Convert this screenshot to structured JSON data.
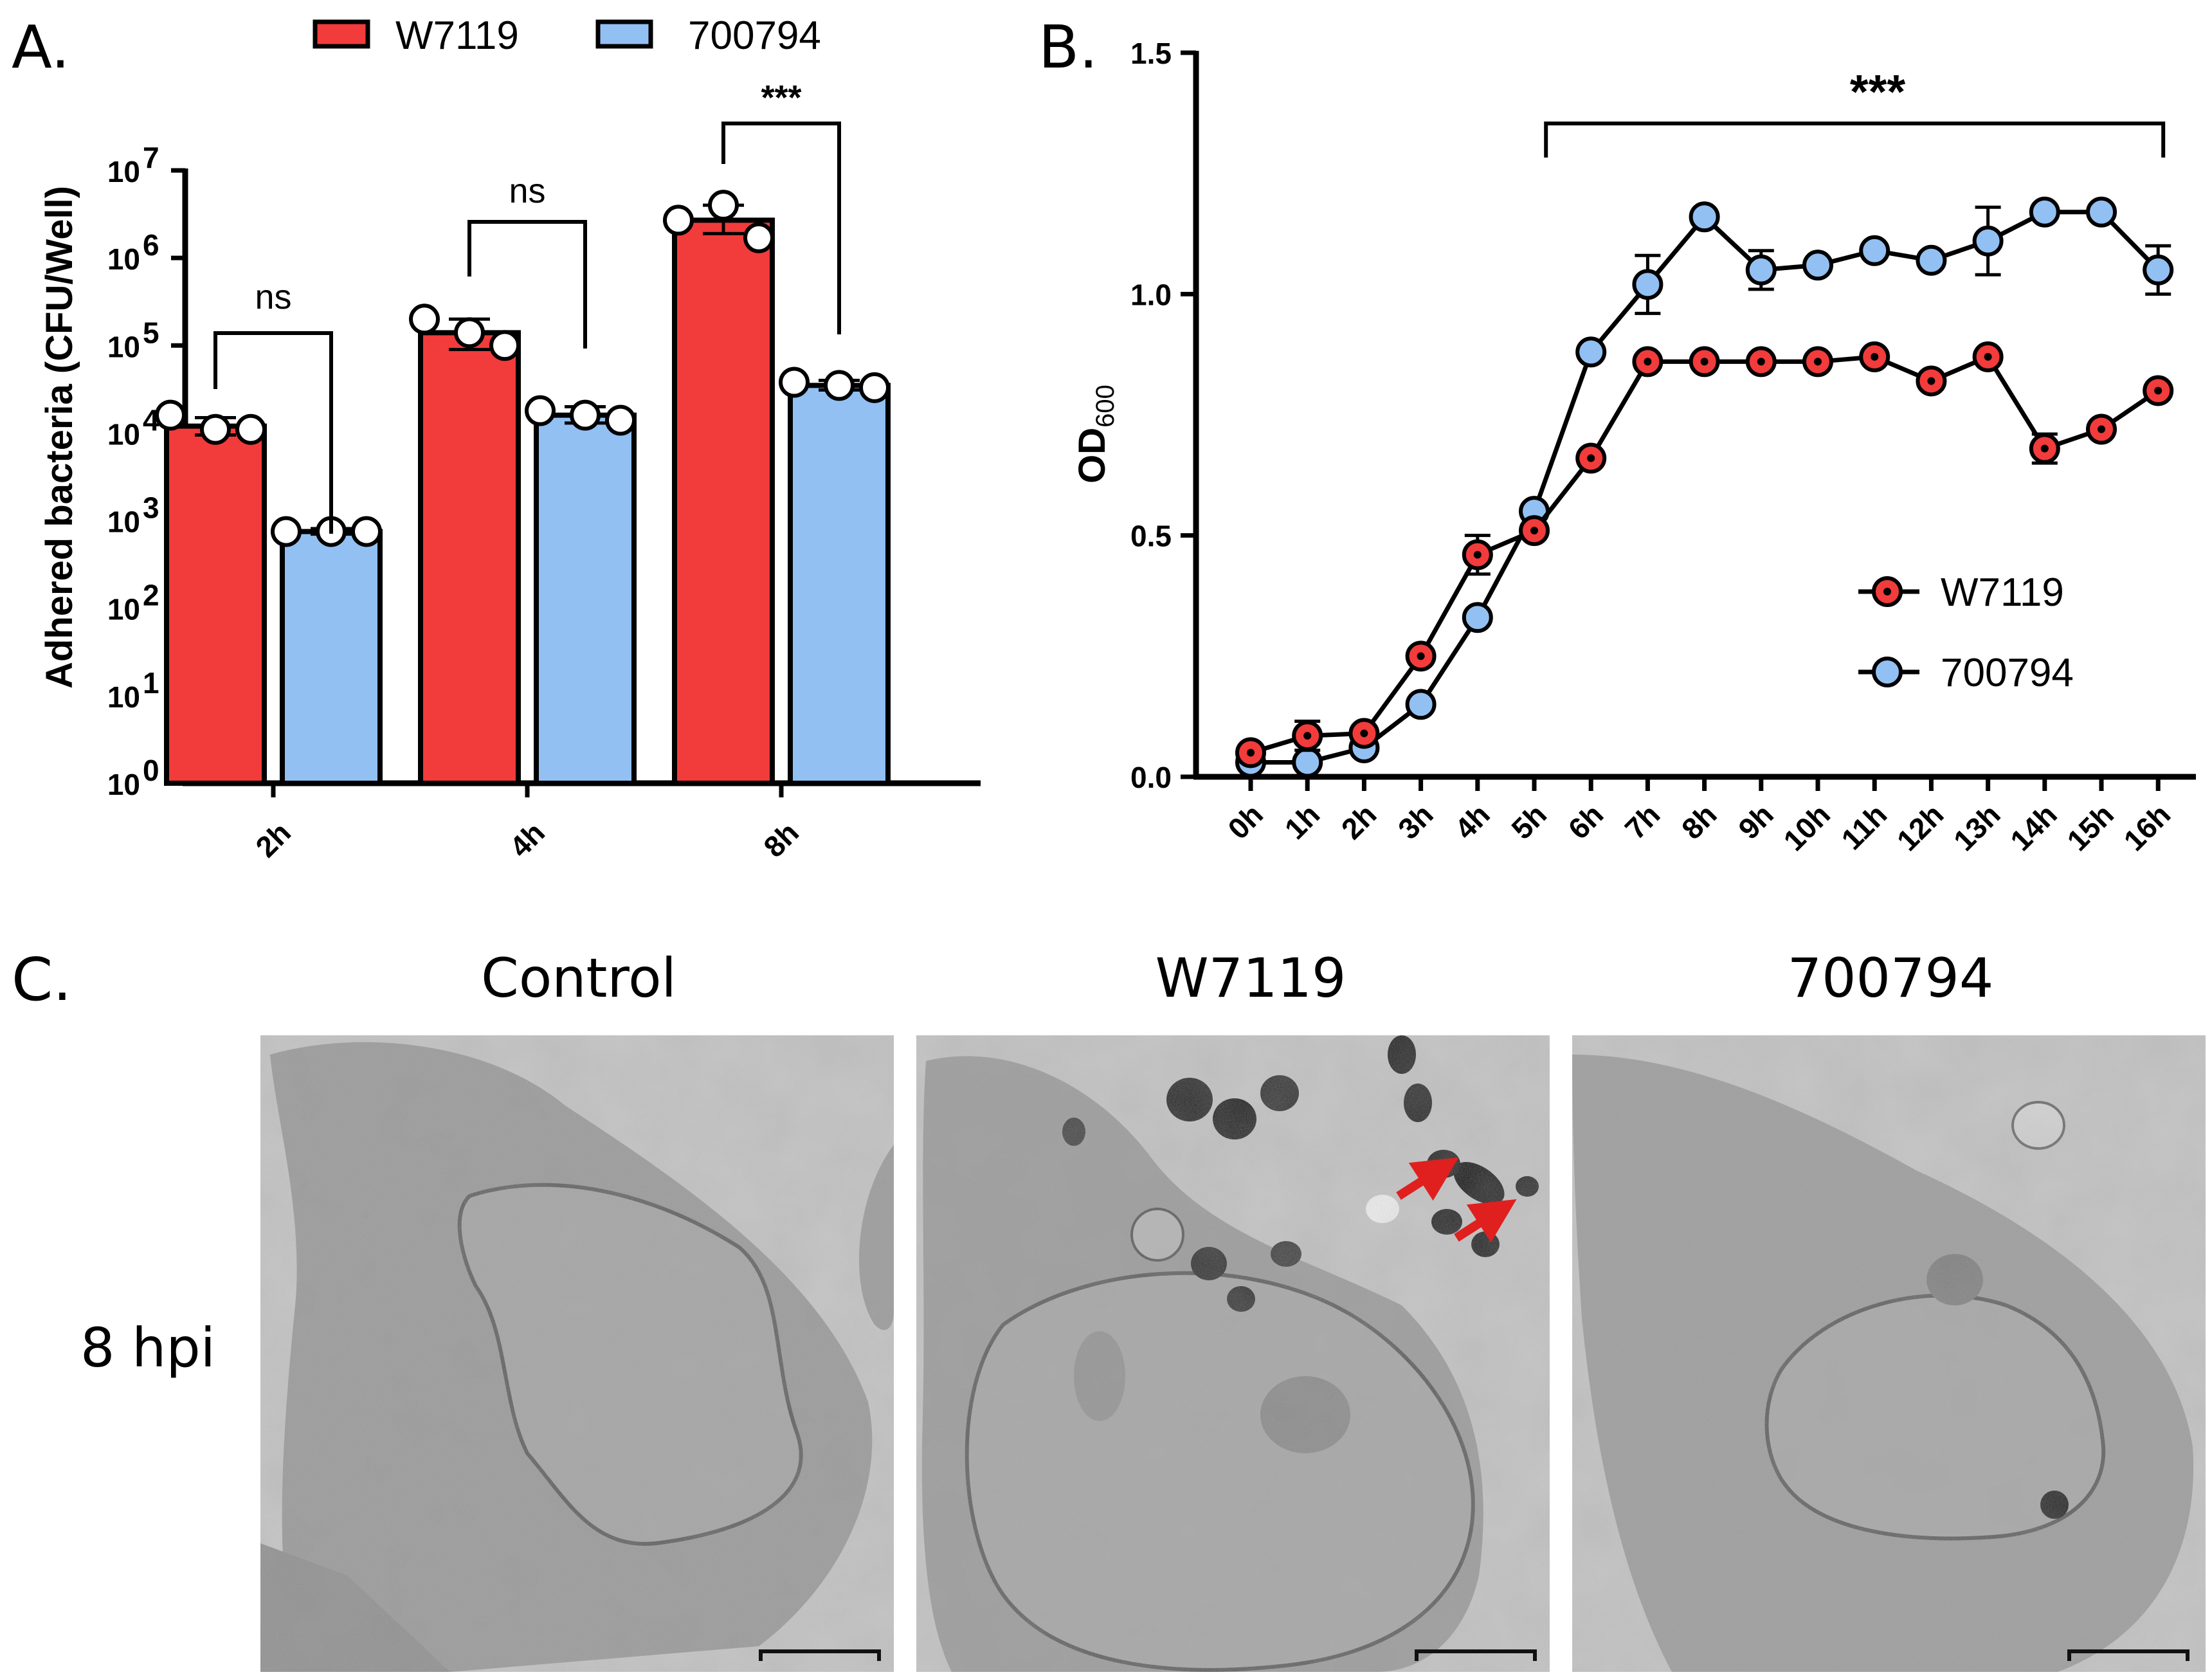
{
  "panel_labels": {
    "a": "A.",
    "b": "B.",
    "c": "C."
  },
  "colors": {
    "w7119": "#f23b3b",
    "a700794": "#92c0f3",
    "black": "#000000"
  },
  "chart_data": [
    {
      "type": "bar",
      "panel": "A",
      "ylabel": "Adhered bacteria (CFU/Well)",
      "yscale": "log",
      "ylim": [
        1,
        10000000
      ],
      "yticks": [
        {
          "base": "10",
          "exp": "0",
          "value": 1
        },
        {
          "base": "10",
          "exp": "1",
          "value": 10
        },
        {
          "base": "10",
          "exp": "2",
          "value": 100
        },
        {
          "base": "10",
          "exp": "3",
          "value": 1000
        },
        {
          "base": "10",
          "exp": "4",
          "value": 10000
        },
        {
          "base": "10",
          "exp": "5",
          "value": 100000
        },
        {
          "base": "10",
          "exp": "6",
          "value": 1000000
        },
        {
          "base": "10",
          "exp": "7",
          "value": 10000000
        }
      ],
      "categories": [
        "2h",
        "4h",
        "8h"
      ],
      "legend": {
        "position": "top"
      },
      "series": [
        {
          "name": "W7119",
          "values": [
            12000,
            140000,
            2700000
          ],
          "sd": [
            [
              9500,
              15000
            ],
            [
              90000,
              200000
            ],
            [
              1900000,
              4000000
            ]
          ],
          "points": [
            [
              16000,
              11000,
              11000
            ],
            [
              200000,
              140000,
              100000
            ],
            [
              2700000,
              4000000,
              1700000
            ]
          ]
        },
        {
          "name": "700794",
          "values": [
            750,
            16000,
            35000
          ],
          "sd": [
            [
              700,
              810
            ],
            [
              13000,
              20000
            ],
            [
              31000,
              40000
            ]
          ],
          "points": [
            [
              750,
              750,
              750
            ],
            [
              18000,
              16000,
              14000
            ],
            [
              38000,
              35000,
              33000
            ]
          ]
        }
      ],
      "significance": [
        {
          "category": "2h",
          "label": "ns"
        },
        {
          "category": "4h",
          "label": "ns"
        },
        {
          "category": "8h",
          "label": "***"
        }
      ]
    },
    {
      "type": "line",
      "panel": "B",
      "ylabel_main": "OD",
      "ylabel_sub": "600",
      "ylim": [
        0,
        1.5
      ],
      "yticks": [
        "0.0",
        "0.5",
        "1.0",
        "1.5"
      ],
      "x": [
        "0h",
        "1h",
        "2h",
        "3h",
        "4h",
        "5h",
        "6h",
        "7h",
        "8h",
        "9h",
        "10h",
        "11h",
        "12h",
        "13h",
        "14h",
        "15h",
        "16h"
      ],
      "legend": {
        "position": "right"
      },
      "series": [
        {
          "name": "W7119",
          "values": [
            0.05,
            0.085,
            0.09,
            0.25,
            0.46,
            0.51,
            0.66,
            0.86,
            0.86,
            0.86,
            0.86,
            0.87,
            0.82,
            0.87,
            0.68,
            0.72,
            0.8
          ],
          "err": [
            0,
            0.03,
            0,
            0,
            0.04,
            0,
            0,
            0,
            0,
            0,
            0,
            0,
            0,
            0,
            0.03,
            0,
            0
          ]
        },
        {
          "name": "700794",
          "values": [
            0.03,
            0.03,
            0.06,
            0.15,
            0.33,
            0.55,
            0.88,
            1.02,
            1.16,
            1.05,
            1.06,
            1.09,
            1.07,
            1.11,
            1.17,
            1.17,
            1.05
          ],
          "err": [
            0,
            0,
            0,
            0,
            0,
            0,
            0,
            0.06,
            0,
            0.04,
            0,
            0,
            0,
            0.07,
            0,
            0,
            0.05
          ]
        }
      ],
      "significance": {
        "from": "6h",
        "to": "16h",
        "label": "***"
      }
    }
  ],
  "panel_c": {
    "columns": [
      "Control",
      "W7119",
      "700794"
    ],
    "row_label": "8 hpi"
  }
}
